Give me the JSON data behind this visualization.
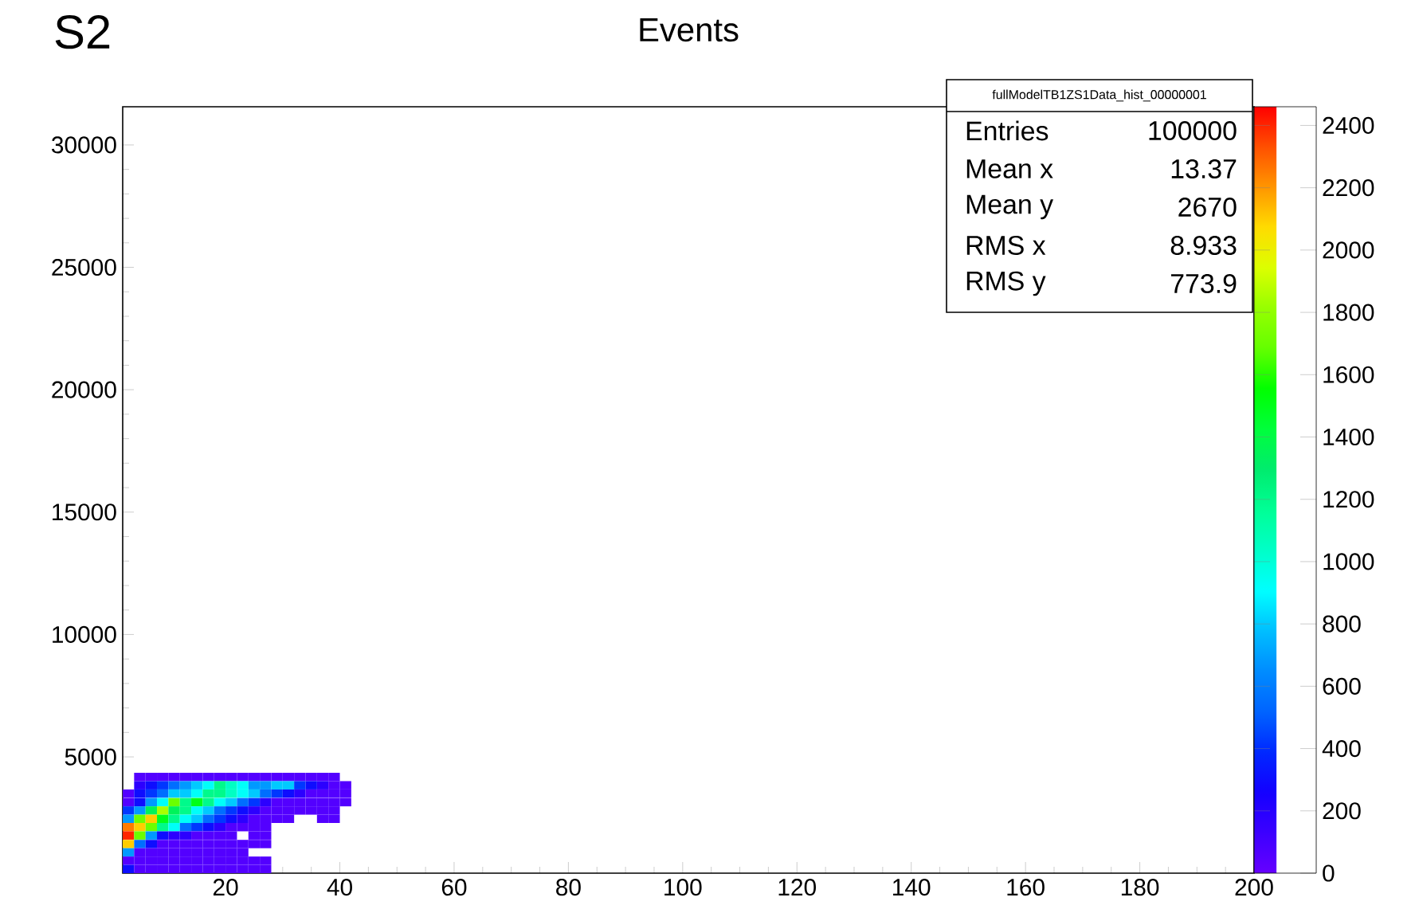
{
  "chart_data": {
    "type": "scatter",
    "title": "Events",
    "marker": "square",
    "annotations": [
      "S2",
      "fullModelTB1ZS1Data_hist_00000001",
      "Entries",
      "100000",
      "Mean x",
      "13.37",
      "Mean y",
      "2670",
      "RMS x",
      "8.933",
      "RMS y",
      "773.9"
    ],
    "xlim": [
      2,
      200
    ],
    "xticks": [
      20,
      40,
      60,
      80,
      100,
      120,
      140,
      160,
      180,
      200
    ],
    "ylim": [
      250,
      31560
    ],
    "yticks": [
      5000,
      10000,
      15000,
      20000,
      25000,
      30000
    ],
    "clim": [
      0,
      2460
    ],
    "cticks": [
      0,
      200,
      400,
      600,
      800,
      1000,
      1200,
      1400,
      1600,
      1800,
      2000,
      2200,
      2400
    ],
    "x": [
      5,
      7,
      9,
      11,
      13,
      15,
      17,
      19,
      21,
      23,
      25,
      27,
      29,
      31,
      33,
      35,
      37,
      39,
      5,
      7,
      9,
      11,
      13,
      15,
      17,
      19,
      21,
      23,
      25,
      27,
      29,
      31,
      33,
      35,
      37,
      39,
      41,
      3,
      5,
      7,
      9,
      11,
      13,
      15,
      17,
      19,
      21,
      23,
      25,
      27,
      29,
      31,
      33,
      35,
      37,
      39,
      41,
      3,
      5,
      7,
      9,
      11,
      13,
      15,
      17,
      19,
      21,
      23,
      25,
      27,
      29,
      31,
      33,
      35,
      37,
      39,
      41,
      3,
      5,
      7,
      9,
      11,
      13,
      15,
      17,
      19,
      21,
      23,
      25,
      27,
      29,
      31,
      33,
      35,
      37,
      39,
      3,
      5,
      7,
      9,
      11,
      13,
      15,
      17,
      19,
      21,
      23,
      25,
      27,
      29,
      31,
      37,
      39,
      3,
      5,
      7,
      9,
      11,
      13,
      15,
      17,
      19,
      21,
      23,
      25,
      27,
      3,
      5,
      7,
      9,
      11,
      13,
      15,
      17,
      19,
      21,
      25,
      27,
      3,
      5,
      7,
      9,
      11,
      13,
      15,
      17,
      19,
      21,
      23,
      25,
      27,
      3,
      5,
      7,
      9,
      11,
      13,
      15,
      17,
      19,
      21,
      23,
      3,
      5,
      7,
      9,
      11,
      13,
      15,
      17,
      19,
      21,
      23,
      25,
      27,
      3,
      5,
      7,
      9,
      11,
      13,
      15,
      17,
      19,
      21,
      23,
      25,
      27
    ],
    "values": [
      4180,
      4180,
      4180,
      4180,
      4180,
      4180,
      4180,
      4180,
      4180,
      4180,
      4180,
      4180,
      4180,
      4180,
      4180,
      4180,
      4180,
      4180,
      3840,
      3840,
      3840,
      3840,
      3840,
      3840,
      3840,
      3840,
      3840,
      3840,
      3840,
      3840,
      3840,
      3840,
      3840,
      3840,
      3840,
      3840,
      3840,
      3500,
      3500,
      3500,
      3500,
      3500,
      3500,
      3500,
      3500,
      3500,
      3500,
      3500,
      3500,
      3500,
      3500,
      3500,
      3500,
      3500,
      3500,
      3500,
      3500,
      3150,
      3150,
      3150,
      3150,
      3150,
      3150,
      3150,
      3150,
      3150,
      3150,
      3150,
      3150,
      3150,
      3150,
      3150,
      3150,
      3150,
      3150,
      3150,
      3150,
      2810,
      2810,
      2810,
      2810,
      2810,
      2810,
      2810,
      2810,
      2810,
      2810,
      2810,
      2810,
      2810,
      2810,
      2810,
      2810,
      2810,
      2810,
      2810,
      2470,
      2470,
      2470,
      2470,
      2470,
      2470,
      2470,
      2470,
      2470,
      2470,
      2470,
      2470,
      2470,
      2470,
      2470,
      2470,
      2470,
      2130,
      2130,
      2130,
      2130,
      2130,
      2130,
      2130,
      2130,
      2130,
      2130,
      2130,
      2130,
      2130,
      1790,
      1790,
      1790,
      1790,
      1790,
      1790,
      1790,
      1790,
      1790,
      1790,
      1790,
      1790,
      1440,
      1440,
      1440,
      1440,
      1440,
      1440,
      1440,
      1440,
      1440,
      1440,
      1440,
      1440,
      1440,
      1100,
      1100,
      1100,
      1100,
      1100,
      1100,
      1100,
      1100,
      1100,
      1100,
      1100,
      760,
      760,
      760,
      760,
      760,
      760,
      760,
      760,
      760,
      760,
      760,
      760,
      760,
      420,
      420,
      420,
      420,
      420,
      420,
      420,
      420,
      420,
      420,
      420,
      420,
      420
    ],
    "cvalues": [
      60,
      60,
      60,
      60,
      60,
      60,
      60,
      60,
      60,
      60,
      60,
      60,
      60,
      60,
      60,
      60,
      60,
      60,
      180,
      300,
      420,
      550,
      680,
      800,
      920,
      1200,
      1050,
      920,
      680,
      680,
      800,
      800,
      420,
      300,
      180,
      60,
      60,
      60,
      300,
      420,
      550,
      800,
      800,
      920,
      1200,
      1200,
      1050,
      920,
      800,
      550,
      420,
      300,
      180,
      60,
      60,
      60,
      60,
      60,
      300,
      680,
      920,
      1700,
      1200,
      1500,
      1200,
      920,
      800,
      550,
      420,
      180,
      60,
      60,
      60,
      60,
      60,
      60,
      60,
      420,
      680,
      1350,
      1850,
      1350,
      1200,
      920,
      800,
      550,
      420,
      300,
      180,
      60,
      60,
      60,
      60,
      60,
      60,
      60,
      680,
      1700,
      2100,
      1500,
      1200,
      920,
      800,
      550,
      420,
      300,
      180,
      60,
      60,
      60,
      60,
      60,
      60,
      2250,
      2100,
      1700,
      1200,
      920,
      550,
      420,
      300,
      180,
      60,
      60,
      60,
      60,
      2400,
      1700,
      680,
      300,
      180,
      180,
      60,
      60,
      60,
      60,
      60,
      60,
      2100,
      550,
      300,
      60,
      60,
      60,
      60,
      60,
      60,
      60,
      60,
      60,
      60,
      680,
      60,
      60,
      60,
      60,
      60,
      60,
      60,
      60,
      60,
      60,
      60,
      60,
      60,
      60,
      60,
      60,
      60,
      60,
      60,
      60,
      60,
      60,
      60,
      300,
      60,
      60,
      60,
      60,
      60,
      60,
      60,
      60,
      60,
      60,
      60,
      60
    ]
  }
}
